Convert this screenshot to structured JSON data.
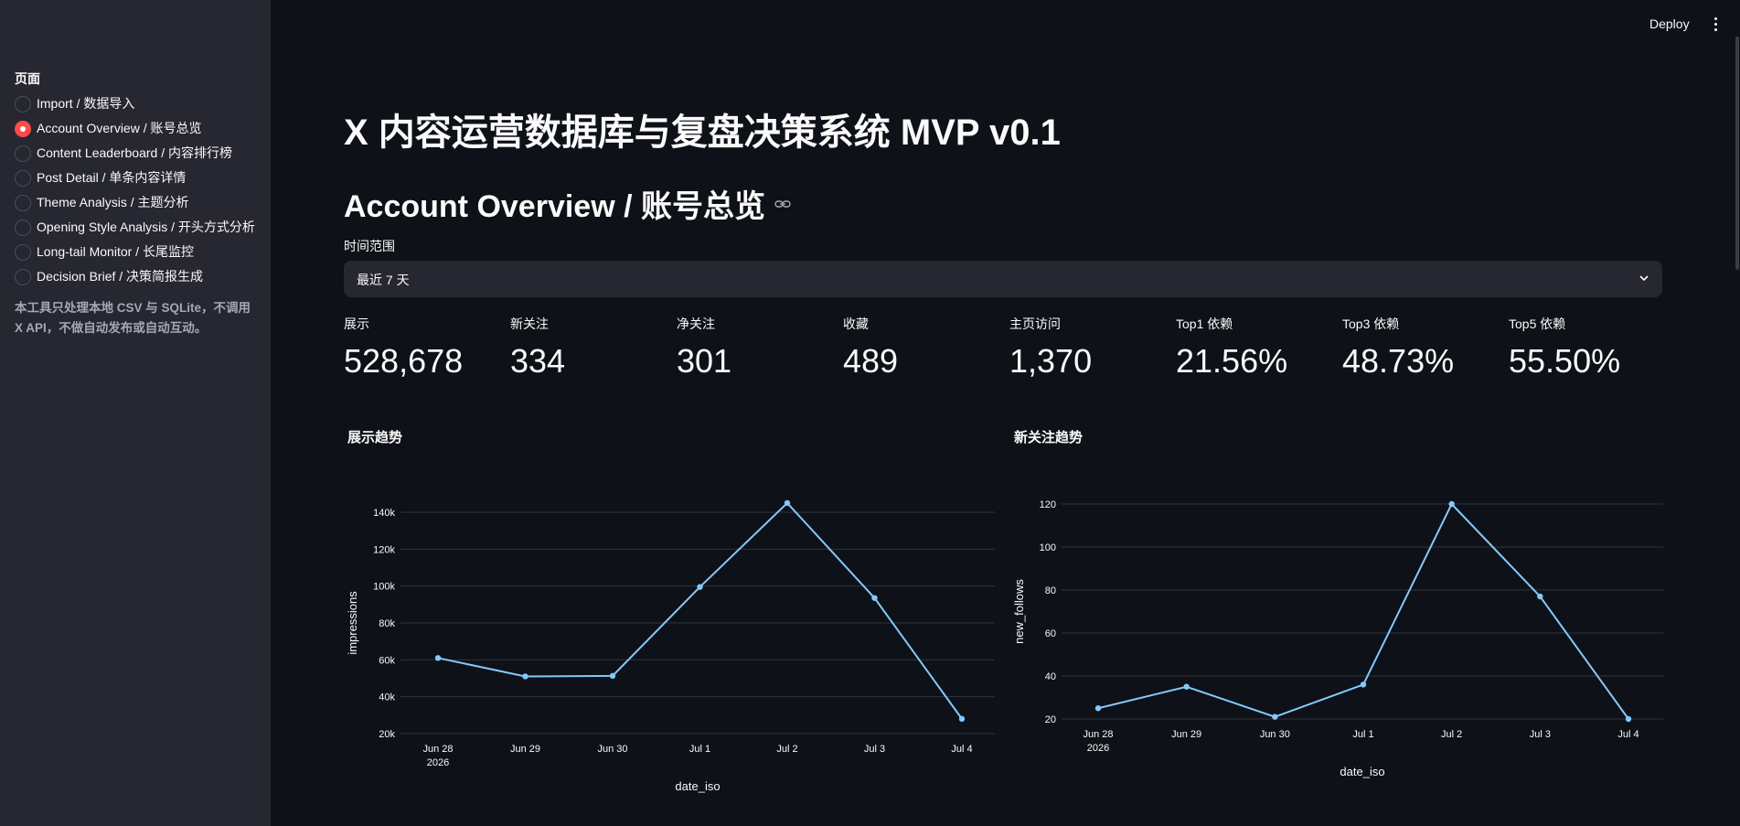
{
  "sidebar": {
    "heading": "页面",
    "items": [
      {
        "label": "Import / 数据导入",
        "selected": false
      },
      {
        "label": "Account Overview / 账号总览",
        "selected": true
      },
      {
        "label": "Content Leaderboard / 内容排行榜",
        "selected": false
      },
      {
        "label": "Post Detail / 单条内容详情",
        "selected": false
      },
      {
        "label": "Theme Analysis / 主题分析",
        "selected": false
      },
      {
        "label": "Opening Style Analysis / 开头方式分析",
        "selected": false
      },
      {
        "label": "Long-tail Monitor / 长尾监控",
        "selected": false
      },
      {
        "label": "Decision Brief / 决策简报生成",
        "selected": false
      }
    ],
    "note": "本工具只处理本地 CSV 与 SQLite，不调用 X API，不做自动发布或自动互动。"
  },
  "header": {
    "deploy_label": "Deploy",
    "menu_icon": "more-vertical-icon"
  },
  "main": {
    "title": "X 内容运营数据库与复盘决策系统 MVP v0.1",
    "page_title": "Account Overview / 账号总览",
    "link_icon": "link-icon",
    "range_label": "时间范围",
    "range_value": "最近 7 天",
    "metrics": [
      {
        "label": "展示",
        "value": "528,678"
      },
      {
        "label": "新关注",
        "value": "334"
      },
      {
        "label": "净关注",
        "value": "301"
      },
      {
        "label": "收藏",
        "value": "489"
      },
      {
        "label": "主页访问",
        "value": "1,370"
      },
      {
        "label": "Top1 依赖",
        "value": "21.56%"
      },
      {
        "label": "Top3 依赖",
        "value": "48.73%"
      },
      {
        "label": "Top5 依赖",
        "value": "55.50%"
      }
    ]
  },
  "colors": {
    "background": "#0e1117",
    "sidebar": "#262730",
    "accent": "#ff4b4b",
    "line": "#83c9ff",
    "grid": "#31333f"
  },
  "chart_data": [
    {
      "type": "line",
      "title": "展示趋势",
      "xlabel": "date_iso",
      "ylabel": "impressions",
      "x": [
        "2026-06-28",
        "2026-06-29",
        "2026-06-30",
        "2026-07-01",
        "2026-07-02",
        "2026-07-03",
        "2026-07-04"
      ],
      "tick_labels": [
        "Jun 28",
        "Jun 29",
        "Jun 30",
        "Jul 1",
        "Jul 2",
        "Jul 3",
        "Jul 4"
      ],
      "year_label": "2026",
      "values": [
        61000,
        51000,
        51300,
        99500,
        145000,
        93500,
        28000
      ],
      "ylim": [
        20000,
        140000
      ],
      "yticks": [
        20000,
        40000,
        60000,
        80000,
        100000,
        120000,
        140000
      ],
      "ytick_labels": [
        "20k",
        "40k",
        "60k",
        "80k",
        "100k",
        "120k",
        "140k"
      ],
      "grid": true
    },
    {
      "type": "line",
      "title": "新关注趋势",
      "xlabel": "date_iso",
      "ylabel": "new_follows",
      "x": [
        "2026-06-28",
        "2026-06-29",
        "2026-06-30",
        "2026-07-01",
        "2026-07-02",
        "2026-07-03",
        "2026-07-04"
      ],
      "tick_labels": [
        "Jun 28",
        "Jun 29",
        "Jun 30",
        "Jul 1",
        "Jul 2",
        "Jul 3",
        "Jul 4"
      ],
      "year_label": "2026",
      "values": [
        25,
        35,
        21,
        36,
        120,
        77,
        20
      ],
      "ylim": [
        20,
        120
      ],
      "yticks": [
        20,
        40,
        60,
        80,
        100,
        120
      ],
      "ytick_labels": [
        "20",
        "40",
        "60",
        "80",
        "100",
        "120"
      ],
      "grid": true
    }
  ]
}
